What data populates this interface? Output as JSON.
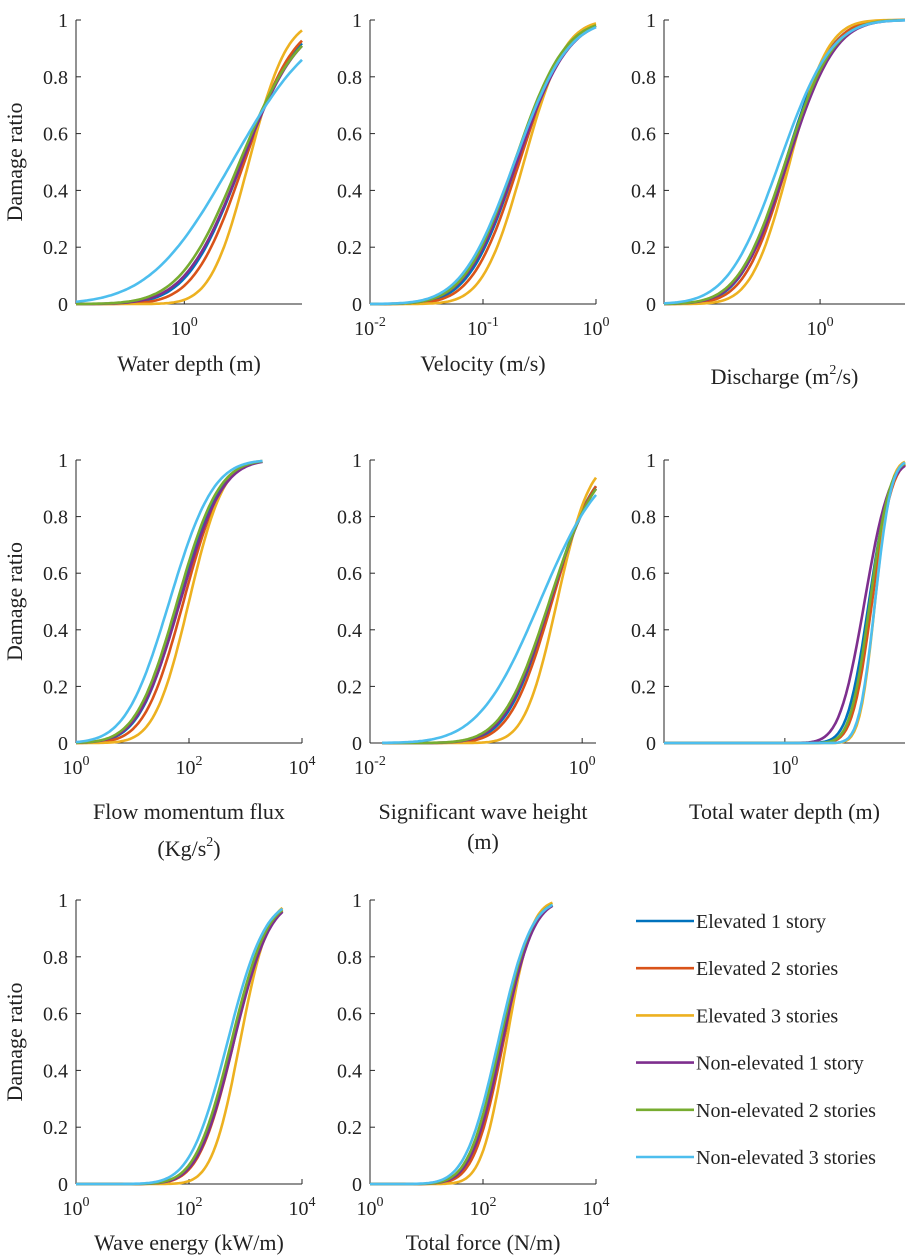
{
  "colors": {
    "Elevated 1 story": "#0072BD",
    "Elevated 2 stories": "#D95319",
    "Elevated 3 stories": "#EDB120",
    "Non-elevated 1 story": "#7E2F8E",
    "Non-elevated 2 stories": "#77AC30",
    "Non-elevated 3 stories": "#4DBEEE"
  },
  "legend": [
    "Elevated 1 story",
    "Elevated 2 stories",
    "Elevated 3 stories",
    "Non-elevated 1 story",
    "Non-elevated 2 stories",
    "Non-elevated 3 stories"
  ],
  "chart_data": [
    {
      "type": "line",
      "xscale": "log",
      "xlim": [
        0.3,
        3.7
      ],
      "ylim": [
        0,
        1
      ],
      "xticks": [
        1
      ],
      "yticks": [
        0,
        0.2,
        0.4,
        0.6,
        0.8,
        1
      ],
      "ylabel": "Damage ratio",
      "xlabel": [
        "Water depth (m)"
      ],
      "series": [
        {
          "name": "Elevated 1 story",
          "median": 1.9,
          "beta": 0.48
        },
        {
          "name": "Elevated 2 stories",
          "median": 1.95,
          "beta": 0.44
        },
        {
          "name": "Elevated 3 stories",
          "median": 2.05,
          "beta": 0.33
        },
        {
          "name": "Non-elevated 1 story",
          "median": 1.9,
          "beta": 0.5
        },
        {
          "name": "Non-elevated 2 stories",
          "median": 1.85,
          "beta": 0.52
        },
        {
          "name": "Non-elevated 3 stories",
          "median": 1.7,
          "beta": 0.72
        }
      ]
    },
    {
      "type": "line",
      "xscale": "log",
      "xlim": [
        0.01,
        1
      ],
      "ylim": [
        0,
        1
      ],
      "xticks": [
        0.01,
        0.1,
        1
      ],
      "yticks": [
        0,
        0.2,
        0.4,
        0.6,
        0.8,
        1
      ],
      "ylabel": "",
      "xlabel": [
        "Velocity (m/s)"
      ],
      "series": [
        {
          "name": "Elevated 1 story",
          "median": 0.2,
          "beta": 0.78
        },
        {
          "name": "Elevated 2 stories",
          "median": 0.21,
          "beta": 0.75
        },
        {
          "name": "Elevated 3 stories",
          "median": 0.23,
          "beta": 0.65
        },
        {
          "name": "Non-elevated 1 story",
          "median": 0.2,
          "beta": 0.82
        },
        {
          "name": "Non-elevated 2 stories",
          "median": 0.19,
          "beta": 0.8
        },
        {
          "name": "Non-elevated 3 stories",
          "median": 0.19,
          "beta": 0.85
        }
      ]
    },
    {
      "type": "line",
      "xscale": "log",
      "xlim": [
        0.1,
        3.5
      ],
      "ylim": [
        0,
        1
      ],
      "xticks": [
        1
      ],
      "yticks": [
        0,
        0.2,
        0.4,
        0.6,
        0.8,
        1
      ],
      "ylabel": "",
      "xlabel": [
        "Discharge (m",
        "2",
        "/s)"
      ],
      "series": [
        {
          "name": "Elevated 1 story",
          "median": 0.6,
          "beta": 0.52
        },
        {
          "name": "Elevated 2 stories",
          "median": 0.62,
          "beta": 0.5
        },
        {
          "name": "Elevated 3 stories",
          "median": 0.64,
          "beta": 0.44
        },
        {
          "name": "Non-elevated 1 story",
          "median": 0.62,
          "beta": 0.55
        },
        {
          "name": "Non-elevated 2 stories",
          "median": 0.6,
          "beta": 0.55
        },
        {
          "name": "Non-elevated 3 stories",
          "median": 0.55,
          "beta": 0.6
        }
      ]
    },
    {
      "type": "line",
      "xscale": "log",
      "xlim": [
        1,
        10000
      ],
      "ylim": [
        0,
        1
      ],
      "xticks": [
        1,
        100,
        10000
      ],
      "yticks": [
        0,
        0.2,
        0.4,
        0.6,
        0.8,
        1
      ],
      "ylabel": "Damage ratio",
      "xlabel": [
        "Flow momentum flux",
        "(Kg/s",
        "2",
        ")"
      ],
      "xdata": [
        1,
        2000
      ],
      "series": [
        {
          "name": "Elevated 1 story",
          "median": 68,
          "beta": 1.3
        },
        {
          "name": "Elevated 2 stories",
          "median": 80,
          "beta": 1.25
        },
        {
          "name": "Elevated 3 stories",
          "median": 100,
          "beta": 1.1
        },
        {
          "name": "Non-elevated 1 story",
          "median": 70,
          "beta": 1.35
        },
        {
          "name": "Non-elevated 2 stories",
          "median": 62,
          "beta": 1.33
        },
        {
          "name": "Non-elevated 3 stories",
          "median": 45,
          "beta": 1.4
        }
      ]
    },
    {
      "type": "line",
      "xscale": "log",
      "xlim": [
        0.01,
        1.35
      ],
      "ylim": [
        0,
        1
      ],
      "xticks": [
        0.01,
        1
      ],
      "yticks": [
        0,
        0.2,
        0.4,
        0.6,
        0.8,
        1
      ],
      "ylabel": "",
      "xlabel": [
        "Significant wave height",
        "(m)"
      ],
      "xdata": [
        0.013,
        1.35
      ],
      "series": [
        {
          "name": "Elevated 1 story",
          "median": 0.5,
          "beta": 0.75
        },
        {
          "name": "Elevated 2 stories",
          "median": 0.52,
          "beta": 0.72
        },
        {
          "name": "Elevated 3 stories",
          "median": 0.58,
          "beta": 0.55
        },
        {
          "name": "Non-elevated 1 story",
          "median": 0.5,
          "beta": 0.78
        },
        {
          "name": "Non-elevated 2 stories",
          "median": 0.49,
          "beta": 0.8
        },
        {
          "name": "Non-elevated 3 stories",
          "median": 0.4,
          "beta": 1.05
        }
      ]
    },
    {
      "type": "line",
      "xscale": "log",
      "xlim": [
        0.18,
        5.5
      ],
      "ylim": [
        0,
        1
      ],
      "xticks": [
        1
      ],
      "yticks": [
        0,
        0.2,
        0.4,
        0.6,
        0.8,
        1
      ],
      "ylabel": "",
      "xlabel": [
        "Total water depth (m)"
      ],
      "series": [
        {
          "name": "Elevated 1 story",
          "median": 3.3,
          "beta": 0.24
        },
        {
          "name": "Elevated 2 stories",
          "median": 3.45,
          "beta": 0.22
        },
        {
          "name": "Elevated 3 stories",
          "median": 3.6,
          "beta": 0.17
        },
        {
          "name": "Non-elevated 1 story",
          "median": 3.1,
          "beta": 0.28
        },
        {
          "name": "Non-elevated 2 stories",
          "median": 3.35,
          "beta": 0.22
        },
        {
          "name": "Non-elevated 3 stories",
          "median": 3.6,
          "beta": 0.18
        }
      ]
    },
    {
      "type": "line",
      "xscale": "log",
      "xlim": [
        1,
        10000
      ],
      "ylim": [
        0,
        1
      ],
      "xticks": [
        1,
        100,
        10000
      ],
      "yticks": [
        0,
        0.2,
        0.4,
        0.6,
        0.8,
        1
      ],
      "ylabel": "Damage ratio",
      "xlabel": [
        "Wave energy (kW/m)"
      ],
      "xdata": [
        1,
        4500
      ],
      "series": [
        {
          "name": "Elevated 1 story",
          "median": 600,
          "beta": 1.15
        },
        {
          "name": "Elevated 2 stories",
          "median": 620,
          "beta": 1.12
        },
        {
          "name": "Elevated 3 stories",
          "median": 800,
          "beta": 0.9
        },
        {
          "name": "Non-elevated 1 story",
          "median": 620,
          "beta": 1.15
        },
        {
          "name": "Non-elevated 2 stories",
          "median": 560,
          "beta": 1.15
        },
        {
          "name": "Non-elevated 3 stories",
          "median": 480,
          "beta": 1.2
        }
      ]
    },
    {
      "type": "line",
      "xscale": "log",
      "xlim": [
        1,
        10000
      ],
      "ylim": [
        0,
        1
      ],
      "xticks": [
        1,
        100,
        10000
      ],
      "yticks": [
        0,
        0.2,
        0.4,
        0.6,
        0.8,
        1
      ],
      "ylabel": "",
      "xlabel": [
        "Total force (N/m)"
      ],
      "xdata": [
        1,
        1700
      ],
      "series": [
        {
          "name": "Elevated 1 story",
          "median": 210,
          "beta": 1.0
        },
        {
          "name": "Elevated 2 stories",
          "median": 230,
          "beta": 0.95
        },
        {
          "name": "Elevated 3 stories",
          "median": 260,
          "beta": 0.8
        },
        {
          "name": "Non-elevated 1 story",
          "median": 220,
          "beta": 1.0
        },
        {
          "name": "Non-elevated 2 stories",
          "median": 200,
          "beta": 1.0
        },
        {
          "name": "Non-elevated 3 stories",
          "median": 185,
          "beta": 1.05
        }
      ]
    }
  ]
}
